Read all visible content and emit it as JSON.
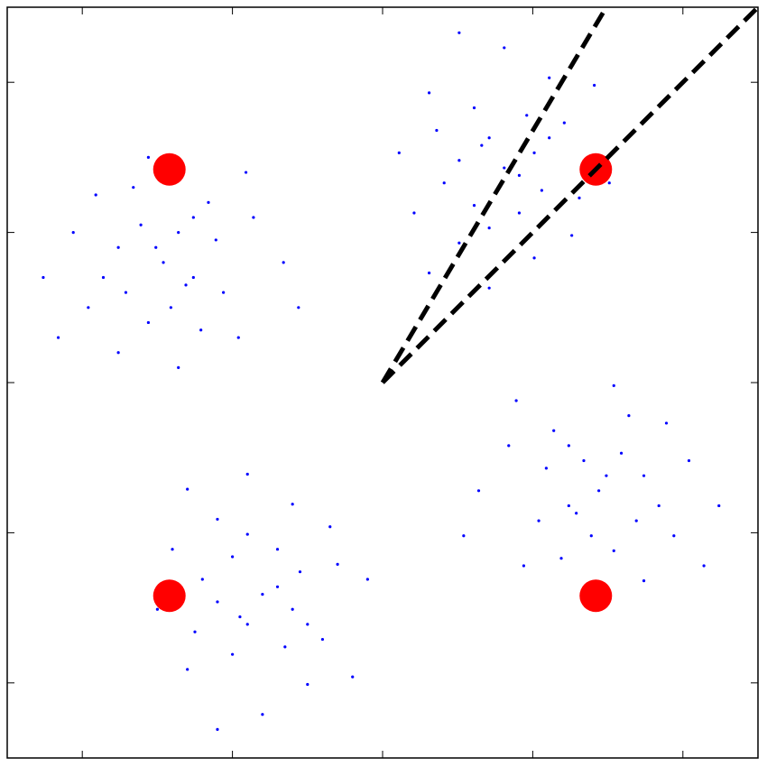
{
  "chart_data": {
    "type": "scatter",
    "xlim": [
      -2.5,
      2.5
    ],
    "ylim": [
      -2.5,
      2.5
    ],
    "xticks": [
      -2,
      -1,
      0,
      1,
      2
    ],
    "yticks": [
      -2,
      -1,
      0,
      1,
      2
    ],
    "series": [
      {
        "type": "scatter",
        "color": "#0000ff",
        "size": 1.6,
        "x": [
          -1.36,
          -1.76,
          -1.06,
          -1.56,
          -0.86,
          -1.96,
          -1.26,
          -1.66,
          -1.46,
          -1.16,
          -2.06,
          -0.96,
          -1.86,
          -1.36,
          -1.56,
          -0.66,
          -2.26,
          -1.26,
          -1.76,
          -1.11,
          -1.61,
          -1.41,
          -1.91,
          -0.91,
          -2.16,
          -1.21,
          -1.51,
          -1.31,
          -1.71,
          -0.56
        ],
        "values": [
          1.0,
          0.9,
          0.6,
          0.4,
          1.1,
          0.5,
          0.7,
          1.3,
          0.8,
          1.2,
          1.0,
          0.3,
          0.7,
          0.1,
          1.5,
          0.8,
          0.7,
          1.1,
          0.2,
          0.95,
          1.05,
          0.5,
          1.25,
          1.4,
          0.3,
          0.35,
          0.9,
          0.65,
          0.6,
          0.5
        ]
      },
      {
        "type": "scatter",
        "color": "#0000ff",
        "size": 1.6,
        "x": [
          1.01,
          0.91,
          0.61,
          0.41,
          1.11,
          0.51,
          0.71,
          1.31,
          0.81,
          1.21,
          1.01,
          0.31,
          0.71,
          0.11,
          1.51,
          0.81,
          0.71,
          1.11,
          0.21,
          0.96,
          1.06,
          0.51,
          1.26,
          1.41,
          0.31,
          0.36,
          0.91,
          0.66,
          0.61,
          0.51
        ],
        "values": [
          1.53,
          1.13,
          1.83,
          1.33,
          2.03,
          0.93,
          1.63,
          1.23,
          1.43,
          1.73,
          0.83,
          1.93,
          1.03,
          1.53,
          1.33,
          2.23,
          0.63,
          1.63,
          1.13,
          1.78,
          1.28,
          1.48,
          0.98,
          1.98,
          0.73,
          1.68,
          1.38,
          1.58,
          1.18,
          2.33
        ]
      },
      {
        "type": "scatter",
        "color": "#0000ff",
        "size": 1.6,
        "x": [
          1.34,
          1.74,
          1.04,
          1.54,
          0.84,
          1.94,
          1.24,
          1.64,
          1.44,
          1.14,
          2.04,
          0.94,
          1.84,
          1.34,
          1.54,
          0.64,
          2.24,
          1.24,
          1.74,
          1.09,
          1.59,
          1.39,
          1.89,
          0.89,
          2.14,
          1.19,
          1.49,
          1.29,
          1.69,
          0.54
        ],
        "values": [
          -0.52,
          -0.62,
          -0.92,
          -1.12,
          -0.42,
          -1.02,
          -0.82,
          -0.22,
          -0.72,
          -0.32,
          -0.52,
          -1.22,
          -0.82,
          -1.42,
          -0.02,
          -0.72,
          -0.82,
          -0.42,
          -1.32,
          -0.57,
          -0.47,
          -1.02,
          -0.27,
          -0.12,
          -1.22,
          -1.17,
          -0.62,
          -0.87,
          -0.92,
          -1.02
        ]
      },
      {
        "type": "scatter",
        "color": "#0000ff",
        "size": 1.6,
        "x": [
          -0.6,
          -0.7,
          -1.0,
          -1.2,
          -0.5,
          -1.1,
          -0.9,
          -0.3,
          -0.8,
          -0.4,
          -0.6,
          -1.3,
          -0.9,
          -1.5,
          -0.1,
          -0.8,
          -0.9,
          -0.5,
          -1.4,
          -0.65,
          -0.55,
          -1.1,
          -0.35,
          -0.2,
          -1.3,
          -1.25,
          -0.7,
          -0.95,
          -1.0,
          -1.1
        ],
        "values": [
          -1.51,
          -1.11,
          -1.81,
          -1.31,
          -2.01,
          -0.91,
          -1.61,
          -1.21,
          -1.41,
          -1.71,
          -0.81,
          -1.91,
          -1.01,
          -1.51,
          -1.31,
          -2.21,
          -0.61,
          -1.61,
          -1.11,
          -1.76,
          -1.26,
          -1.46,
          -0.96,
          -1.96,
          -0.71,
          -1.66,
          -1.36,
          -1.56,
          -1.16,
          -2.31
        ]
      },
      {
        "type": "scatter",
        "color": "#ff0000",
        "size": 18,
        "x": [
          -1.42,
          1.42,
          -1.42,
          1.42
        ],
        "values": [
          1.42,
          1.42,
          -1.42,
          -1.42
        ]
      },
      {
        "type": "line",
        "color": "#000000",
        "dashed": true,
        "x": [
          0,
          1.49
        ],
        "values": [
          0,
          2.5
        ]
      },
      {
        "type": "line",
        "color": "#000000",
        "dashed": true,
        "x": [
          0,
          2.49
        ],
        "values": [
          0,
          2.49
        ]
      }
    ]
  }
}
